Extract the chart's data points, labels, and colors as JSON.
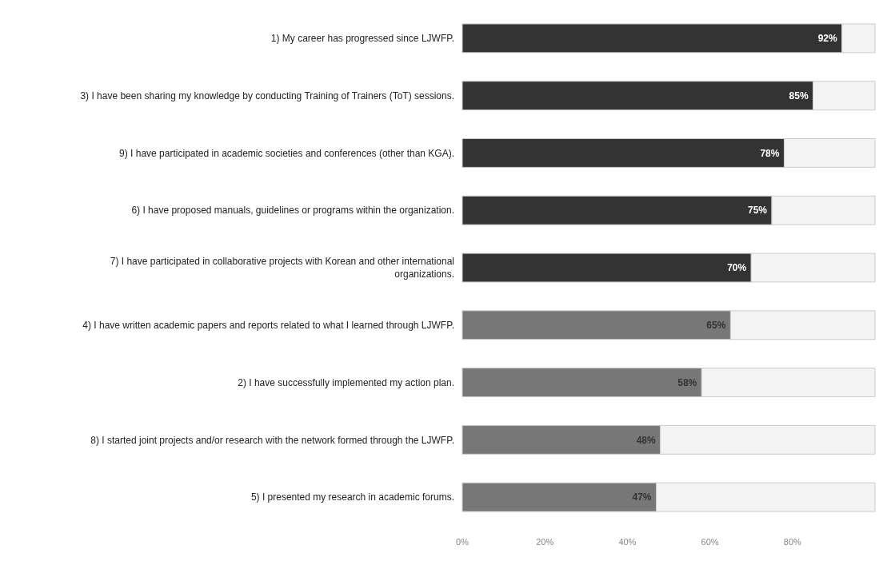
{
  "chart_data": {
    "type": "bar",
    "orientation": "horizontal",
    "stacked": true,
    "categories": [
      "1) My career has progressed since LJWFP.",
      "3) I have been sharing my knowledge by conducting Training of Trainers (ToT) sessions.",
      "9) I have participated in academic societies and conferences (other than KGA).",
      "6) I have proposed manuals, guidelines or programs within the organization.",
      "7) I have participated in collaborative projects with Korean and other international organizations.",
      "4) I have written academic papers and reports related to what I learned through LJWFP.",
      "2) I have successfully implemented my action plan.",
      "8) I started joint projects and/or research with the network formed through the LJWFP.",
      "5) I presented my research in academic forums."
    ],
    "series": [
      {
        "values": [
          92,
          85,
          78,
          75,
          70,
          65,
          58,
          48,
          47
        ],
        "colors": [
          "#333333",
          "#333333",
          "#333333",
          "#333333",
          "#333333",
          "#777777",
          "#777777",
          "#777777",
          "#777777"
        ],
        "value_labels": [
          "92%",
          "85%",
          "78%",
          "75%",
          "70%",
          "65%",
          "58%",
          "48%",
          "47%"
        ]
      },
      {
        "color": "#f3f3f3",
        "values": [
          8,
          15,
          22,
          25,
          30,
          35,
          42,
          52,
          53
        ]
      }
    ],
    "xlim": [
      0,
      100
    ],
    "xticks": [
      {
        "value": 0,
        "label": "0%"
      },
      {
        "value": 20,
        "label": "20%"
      },
      {
        "value": 40,
        "label": "40%"
      },
      {
        "value": 60,
        "label": "60%"
      },
      {
        "value": 80,
        "label": "80%"
      }
    ],
    "grid": false
  }
}
